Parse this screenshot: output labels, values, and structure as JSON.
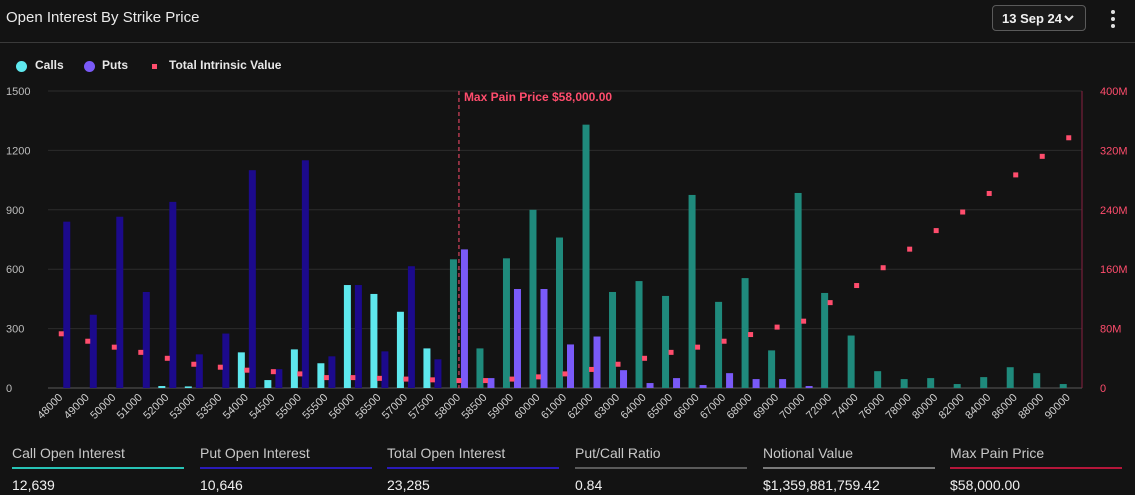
{
  "header": {
    "title": "Open Interest By Strike Price",
    "date_label": "13 Sep 24"
  },
  "legend": {
    "calls": "Calls",
    "puts": "Puts",
    "tiv": "Total Intrinsic Value"
  },
  "colors": {
    "calls_itm": "#1f8a7c",
    "calls_otm": "#5ee8ee",
    "puts_itm": "#1c0a8c",
    "puts_otm": "#7a5af8",
    "tiv": "#ff4d6d",
    "max_pain": "#ff4d6d"
  },
  "chart_data": {
    "type": "bar",
    "title": "Open Interest By Strike Price",
    "categories": [
      "48000",
      "49000",
      "50000",
      "51000",
      "52000",
      "53000",
      "53500",
      "54000",
      "54500",
      "55000",
      "55500",
      "56000",
      "56500",
      "57000",
      "57500",
      "58000",
      "58500",
      "59000",
      "60000",
      "61000",
      "62000",
      "63000",
      "64000",
      "65000",
      "66000",
      "67000",
      "68000",
      "69000",
      "70000",
      "72000",
      "74000",
      "76000",
      "78000",
      "80000",
      "82000",
      "84000",
      "86000",
      "88000",
      "90000"
    ],
    "series": [
      {
        "name": "Calls",
        "axis": "left",
        "values": [
          0,
          0,
          0,
          0,
          10,
          8,
          0,
          180,
          40,
          195,
          125,
          520,
          475,
          385,
          200,
          650,
          200,
          655,
          900,
          760,
          1330,
          485,
          540,
          465,
          975,
          435,
          555,
          190,
          985,
          480,
          265,
          85,
          45,
          50,
          20,
          55,
          105,
          75,
          20
        ]
      },
      {
        "name": "Puts",
        "axis": "left",
        "values": [
          840,
          370,
          865,
          485,
          940,
          170,
          275,
          1100,
          95,
          1150,
          160,
          520,
          185,
          615,
          145,
          700,
          50,
          500,
          500,
          220,
          260,
          90,
          25,
          50,
          15,
          75,
          45,
          45,
          10,
          0,
          0,
          0,
          0,
          0,
          0,
          0,
          0,
          0,
          0
        ]
      },
      {
        "name": "Total Intrinsic Value",
        "axis": "right",
        "type": "scatter",
        "values": [
          73,
          63,
          55,
          48,
          40,
          32,
          28,
          24,
          22,
          19,
          14,
          14,
          13,
          12,
          11,
          10,
          10,
          12,
          15,
          19,
          25,
          32,
          40,
          48,
          55,
          63,
          72,
          82,
          90,
          115,
          138,
          162,
          187,
          212,
          237,
          262,
          287,
          312,
          337
        ]
      }
    ],
    "itm_split_index": 15,
    "ylim_left": [
      0,
      1500
    ],
    "yticks_left": [
      "0",
      "300",
      "600",
      "900",
      "1200",
      "1500"
    ],
    "ylim_right": [
      0,
      400
    ],
    "yticks_right": [
      "0",
      "80M",
      "160M",
      "240M",
      "320M",
      "400M"
    ],
    "yticks_right_values": [
      0,
      80,
      160,
      240,
      320,
      400
    ],
    "max_pain": {
      "strike": "58000",
      "label": "Max Pain Price $58,000.00"
    },
    "grid": true
  },
  "stats": [
    {
      "label": "Call Open Interest",
      "value": "12,639",
      "color": "#27c3b5"
    },
    {
      "label": "Put Open Interest",
      "value": "10,646",
      "color": "#2a1ab8"
    },
    {
      "label": "Total Open Interest",
      "value": "23,285",
      "color": "#2a1ab8"
    },
    {
      "label": "Put/Call Ratio",
      "value": "0.84",
      "color": "#5a5a5a"
    },
    {
      "label": "Notional Value",
      "value": "$1,359,881,759.42",
      "color": "#7a7a7a"
    },
    {
      "label": "Max Pain Price",
      "value": "$58,000.00",
      "color": "#b5163a"
    }
  ]
}
